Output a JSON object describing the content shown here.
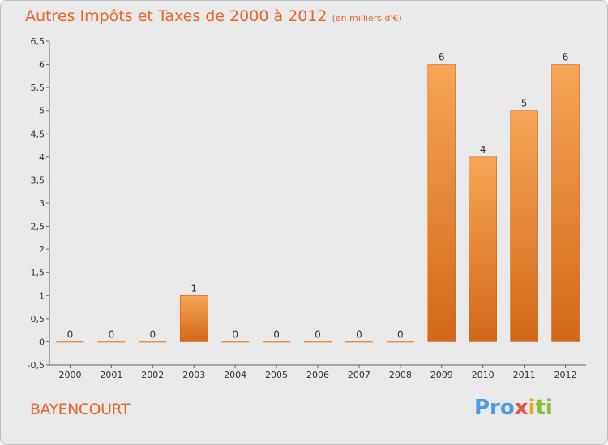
{
  "chart_data": {
    "type": "bar",
    "title": "Autres Impôts et Taxes de 2000 à 2012",
    "subtitle": "(en milliers d'€)",
    "categories": [
      "2000",
      "2001",
      "2002",
      "2003",
      "2004",
      "2005",
      "2006",
      "2007",
      "2008",
      "2009",
      "2010",
      "2011",
      "2012"
    ],
    "values": [
      0,
      0,
      0,
      1,
      0,
      0,
      0,
      0,
      0,
      6,
      4,
      5,
      6
    ],
    "ylim": [
      -0.5,
      6.5
    ],
    "yticks": [
      "-0,5",
      "0",
      "0,5",
      "1",
      "1,5",
      "2",
      "2,5",
      "3",
      "3,5",
      "4",
      "4,5",
      "5",
      "5,5",
      "6",
      "6,5"
    ],
    "grid": false,
    "bar_color": "#f0913a"
  },
  "location": "BAYENCOURT",
  "logo": {
    "p1": "Pro",
    "p2": "x",
    "p3": "i",
    "p4": "ti"
  }
}
